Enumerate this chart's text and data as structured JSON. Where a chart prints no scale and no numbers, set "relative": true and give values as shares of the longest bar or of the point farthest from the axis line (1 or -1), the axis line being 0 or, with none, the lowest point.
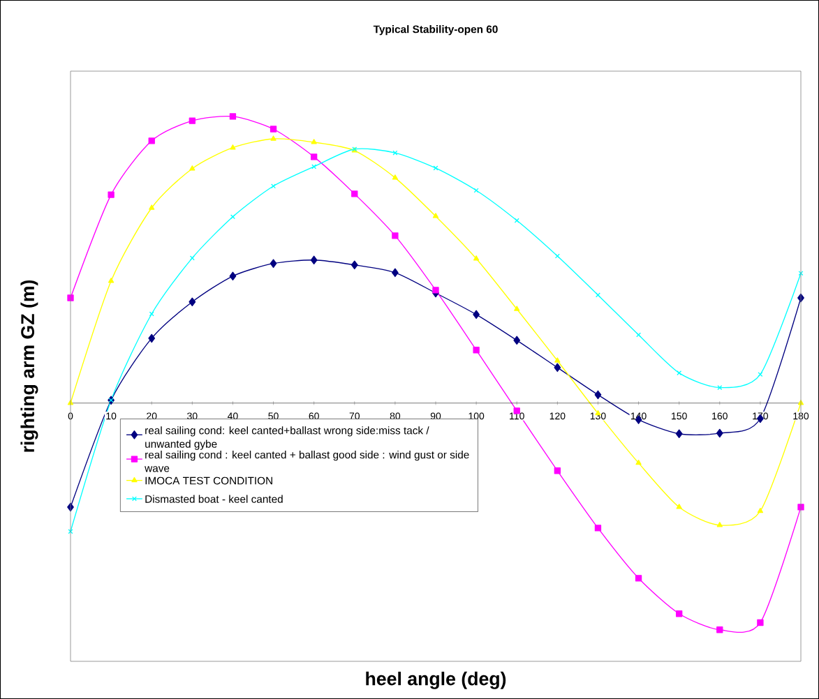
{
  "chart_data": {
    "type": "line",
    "title": "Typical Stability-open 60",
    "xlabel": "heel angle (deg)",
    "ylabel": "righting arm GZ (m)",
    "relative": true,
    "xlim": [
      0,
      180
    ],
    "xticks": [
      0,
      10,
      20,
      30,
      40,
      50,
      60,
      70,
      80,
      90,
      100,
      110,
      120,
      130,
      140,
      150,
      160,
      170,
      180
    ],
    "x": [
      0,
      10,
      20,
      30,
      40,
      50,
      60,
      70,
      80,
      90,
      100,
      110,
      120,
      130,
      140,
      150,
      160,
      170,
      180
    ],
    "legend": "bottom left",
    "series": [
      {
        "name": "real sailing cond: keel canted+ballast wrong side:miss tack / unwanted gybe",
        "color": "#000080",
        "marker": "diamond",
        "values": [
          -0.363,
          0.01,
          0.226,
          0.353,
          0.443,
          0.487,
          0.499,
          0.482,
          0.455,
          0.384,
          0.309,
          0.219,
          0.124,
          0.029,
          -0.058,
          -0.107,
          -0.105,
          -0.054,
          0.367
        ]
      },
      {
        "name": "real sailing cond : keel canted + ballast good side : wind gust or side wave",
        "color": "#ff00ff",
        "marker": "square",
        "values": [
          0.367,
          0.727,
          0.915,
          0.985,
          1,
          0.956,
          0.859,
          0.73,
          0.584,
          0.394,
          0.185,
          -0.027,
          -0.236,
          -0.436,
          -0.611,
          -0.735,
          -0.791,
          -0.766,
          -0.363
        ]
      },
      {
        "name": "IMOCA TEST CONDITION",
        "color": "#ffff00",
        "marker": "triangle",
        "values": [
          0,
          0.426,
          0.681,
          0.818,
          0.891,
          0.922,
          0.91,
          0.881,
          0.786,
          0.652,
          0.504,
          0.328,
          0.148,
          -0.036,
          -0.209,
          -0.363,
          -0.426,
          -0.377,
          0
        ]
      },
      {
        "name": "Dismasted boat - keel canted",
        "color": "#00ffff",
        "marker": "cross",
        "values": [
          -0.448,
          0.01,
          0.311,
          0.506,
          0.65,
          0.757,
          0.825,
          0.886,
          0.873,
          0.82,
          0.742,
          0.637,
          0.513,
          0.377,
          0.238,
          0.105,
          0.054,
          0.1,
          0.453
        ]
      }
    ]
  }
}
